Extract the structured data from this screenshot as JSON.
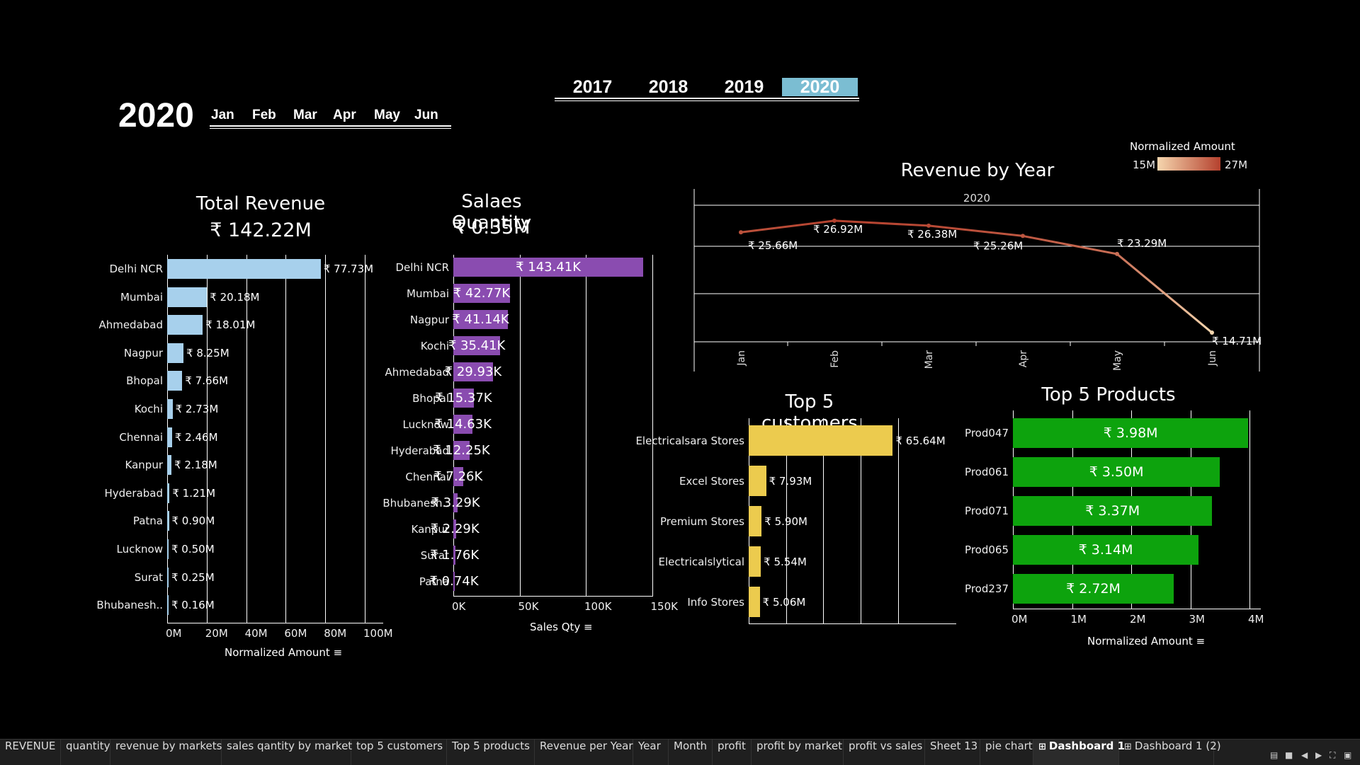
{
  "year_filter": {
    "options": [
      "2017",
      "2018",
      "2019",
      "2020"
    ],
    "selected": "2020"
  },
  "big_year": "2020",
  "month_filter": {
    "options": [
      "Jan",
      "Feb",
      "Mar",
      "Apr",
      "May",
      "Jun"
    ]
  },
  "total_revenue": {
    "title": "Total Revenue",
    "total": "₹ 142.22M",
    "axis_title": "Normalized Amount",
    "ticks": [
      "0M",
      "20M",
      "40M",
      "60M",
      "80M",
      "100M"
    ],
    "rows": [
      {
        "label": "Delhi NCR",
        "value": 77.73,
        "text": "₹ 77.73M"
      },
      {
        "label": "Mumbai",
        "value": 20.18,
        "text": "₹ 20.18M"
      },
      {
        "label": "Ahmedabad",
        "value": 18.01,
        "text": "₹ 18.01M"
      },
      {
        "label": "Nagpur",
        "value": 8.25,
        "text": "₹ 8.25M"
      },
      {
        "label": "Bhopal",
        "value": 7.66,
        "text": "₹ 7.66M"
      },
      {
        "label": "Kochi",
        "value": 2.73,
        "text": "₹ 2.73M"
      },
      {
        "label": "Chennai",
        "value": 2.46,
        "text": "₹ 2.46M"
      },
      {
        "label": "Kanpur",
        "value": 2.18,
        "text": "₹ 2.18M"
      },
      {
        "label": "Hyderabad",
        "value": 1.21,
        "text": "₹ 1.21M"
      },
      {
        "label": "Patna",
        "value": 0.9,
        "text": "₹ 0.90M"
      },
      {
        "label": "Lucknow",
        "value": 0.5,
        "text": "₹ 0.50M"
      },
      {
        "label": "Surat",
        "value": 0.25,
        "text": "₹ 0.25M"
      },
      {
        "label": "Bhubanesh..",
        "value": 0.16,
        "text": "₹ 0.16M"
      }
    ]
  },
  "sales_qty": {
    "title": "Salaes Quantity",
    "total": "₹ 0.35M",
    "axis_title": "Sales Qty",
    "ticks": [
      "0K",
      "50K",
      "100K",
      "150K"
    ],
    "rows": [
      {
        "label": "Delhi NCR",
        "value": 143.41,
        "text": "₹ 143.41K"
      },
      {
        "label": "Mumbai",
        "value": 42.77,
        "text": "₹ 42.77K"
      },
      {
        "label": "Nagpur",
        "value": 41.14,
        "text": "₹ 41.14K"
      },
      {
        "label": "Kochi",
        "value": 35.41,
        "text": "₹ 35.41K"
      },
      {
        "label": "Ahmedabad",
        "value": 29.93,
        "text": "₹ 29.93K"
      },
      {
        "label": "Bhopal",
        "value": 15.37,
        "text": "₹ 15.37K"
      },
      {
        "label": "Lucknow",
        "value": 14.63,
        "text": "₹ 14.63K"
      },
      {
        "label": "Hyderabad",
        "value": 12.25,
        "text": "₹ 12.25K"
      },
      {
        "label": "Chennai",
        "value": 7.26,
        "text": "₹ 7.26K"
      },
      {
        "label": "Bhubanesh..",
        "value": 3.29,
        "text": "₹ 3.29K"
      },
      {
        "label": "Kanpur",
        "value": 2.29,
        "text": "₹ 2.29K"
      },
      {
        "label": "Surat",
        "value": 1.76,
        "text": "₹ 1.76K"
      },
      {
        "label": "Patna",
        "value": 0.74,
        "text": "₹ 0.74K"
      }
    ]
  },
  "revenue_by_year": {
    "title": "Revenue by Year",
    "header": "2020",
    "legend_title": "Normalized Amount",
    "legend_min": "15M",
    "legend_max": "27M",
    "months": [
      "Jan",
      "Feb",
      "Mar",
      "Apr",
      "May",
      "Jun"
    ],
    "values": [
      25.66,
      26.92,
      26.38,
      25.26,
      23.29,
      14.71
    ],
    "labels": [
      "₹ 25.66M",
      "₹ 26.92M",
      "₹ 26.38M",
      "₹ 25.26M",
      "₹ 23.29M",
      "₹ 14.71M"
    ]
  },
  "top_customers": {
    "title": "Top 5 customers",
    "rows": [
      {
        "label": "Electricalsara Stores",
        "value": 65.64,
        "text": "₹ 65.64M"
      },
      {
        "label": "Excel Stores",
        "value": 7.93,
        "text": "₹ 7.93M"
      },
      {
        "label": "Premium Stores",
        "value": 5.9,
        "text": "₹ 5.90M"
      },
      {
        "label": "Electricalslytical",
        "value": 5.54,
        "text": "₹ 5.54M"
      },
      {
        "label": "Info Stores",
        "value": 5.06,
        "text": "₹ 5.06M"
      }
    ]
  },
  "top_products": {
    "title": "Top 5 Products",
    "axis_title": "Normalized Amount",
    "ticks": [
      "0M",
      "1M",
      "2M",
      "3M",
      "4M"
    ],
    "rows": [
      {
        "label": "Prod047",
        "value": 3.98,
        "text": "₹ 3.98M"
      },
      {
        "label": "Prod061",
        "value": 3.5,
        "text": "₹ 3.50M"
      },
      {
        "label": "Prod071",
        "value": 3.37,
        "text": "₹ 3.37M"
      },
      {
        "label": "Prod065",
        "value": 3.14,
        "text": "₹ 3.14M"
      },
      {
        "label": "Prod237",
        "value": 2.72,
        "text": "₹ 2.72M"
      }
    ]
  },
  "sheet_tabs": [
    "REVENUE",
    "quantity",
    "revenue by markets",
    "sales qantity by market",
    "top 5 customers",
    "Top 5 products",
    "Revenue per Year",
    "Year",
    "Month",
    "profit",
    "profit by market",
    "profit vs sales",
    "Sheet 13",
    "pie chart",
    "Dashboard 1",
    "Dashboard 1 (2)"
  ],
  "active_sheet": "Dashboard 1",
  "colors": {
    "revenue_bar": "#a7d0ec",
    "qty_bar": "#8a4cb0",
    "customer_bar": "#eccb4e",
    "product_bar": "#0da30d",
    "line_start": "#b5412e",
    "line_end": "#f5d6ae"
  },
  "chart_data": [
    {
      "type": "bar",
      "title": "Total Revenue",
      "categories": [
        "Delhi NCR",
        "Mumbai",
        "Ahmedabad",
        "Nagpur",
        "Bhopal",
        "Kochi",
        "Chennai",
        "Kanpur",
        "Hyderabad",
        "Patna",
        "Lucknow",
        "Surat",
        "Bhubanesh.."
      ],
      "values": [
        77.73,
        20.18,
        18.01,
        8.25,
        7.66,
        2.73,
        2.46,
        2.18,
        1.21,
        0.9,
        0.5,
        0.25,
        0.16
      ],
      "xlabel": "Normalized Amount",
      "xlim": [
        0,
        110
      ]
    },
    {
      "type": "bar",
      "title": "Salaes Quantity",
      "categories": [
        "Delhi NCR",
        "Mumbai",
        "Nagpur",
        "Kochi",
        "Ahmedabad",
        "Bhopal",
        "Lucknow",
        "Hyderabad",
        "Chennai",
        "Bhubanesh..",
        "Kanpur",
        "Surat",
        "Patna"
      ],
      "values": [
        143.41,
        42.77,
        41.14,
        35.41,
        29.93,
        15.37,
        14.63,
        12.25,
        7.26,
        3.29,
        2.29,
        1.76,
        0.74
      ],
      "xlabel": "Sales Qty",
      "xlim": [
        0,
        150
      ]
    },
    {
      "type": "line",
      "title": "Revenue by Year",
      "x": [
        "Jan",
        "Feb",
        "Mar",
        "Apr",
        "May",
        "Jun"
      ],
      "values": [
        25.66,
        26.92,
        26.38,
        25.26,
        23.29,
        14.71
      ]
    },
    {
      "type": "bar",
      "title": "Top 5 customers",
      "categories": [
        "Electricalsara Stores",
        "Excel Stores",
        "Premium Stores",
        "Electricalslytical",
        "Info Stores"
      ],
      "values": [
        65.64,
        7.93,
        5.9,
        5.54,
        5.06
      ]
    },
    {
      "type": "bar",
      "title": "Top 5 Products",
      "categories": [
        "Prod047",
        "Prod061",
        "Prod071",
        "Prod065",
        "Prod237"
      ],
      "values": [
        3.98,
        3.5,
        3.37,
        3.14,
        2.72
      ],
      "xlabel": "Normalized Amount",
      "xlim": [
        0,
        4
      ]
    }
  ]
}
